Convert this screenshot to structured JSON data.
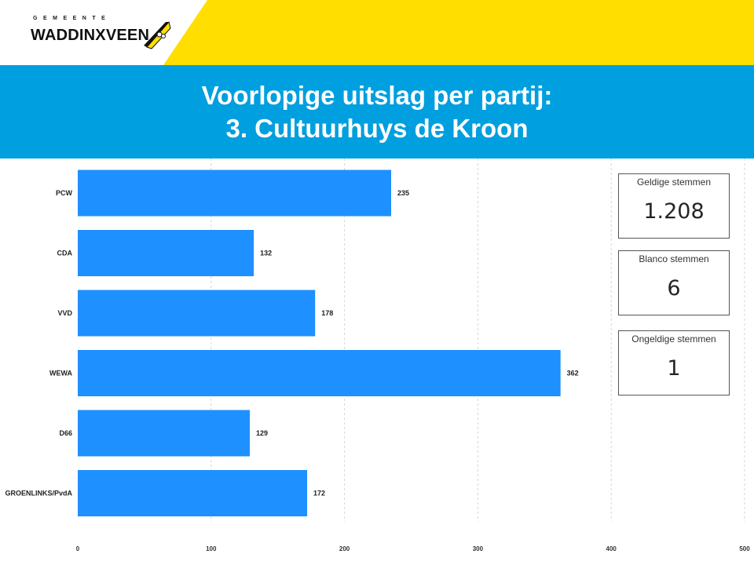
{
  "header": {
    "logo_small": "GEMEENTE",
    "logo_main": "WADDINXVEEN",
    "brand_yellow": "#FFDE00",
    "logo_icon": "city-emblem-icon"
  },
  "title": {
    "line1": "Voorlopige uitslag per partij:",
    "line2": "3. Cultuurhuys de Kroon",
    "background": "#009FDF"
  },
  "chart_data": {
    "type": "bar",
    "orientation": "horizontal",
    "categories": [
      "PCW",
      "CDA",
      "VVD",
      "WEWA",
      "D66",
      "GROENLINKS/PvdA"
    ],
    "values": [
      235,
      132,
      178,
      362,
      129,
      172
    ],
    "xlim": [
      0,
      500
    ],
    "xticks": [
      0,
      100,
      200,
      300,
      400,
      500
    ],
    "bar_color": "#1E90FF",
    "grid": true,
    "data_labels": true
  },
  "stats": {
    "geldige_label": "Geldige stemmen",
    "geldige_value": "1.208",
    "blanco_label": "Blanco stemmen",
    "blanco_value": "6",
    "ongeldige_label": "Ongeldige stemmen",
    "ongeldige_value": "1"
  }
}
